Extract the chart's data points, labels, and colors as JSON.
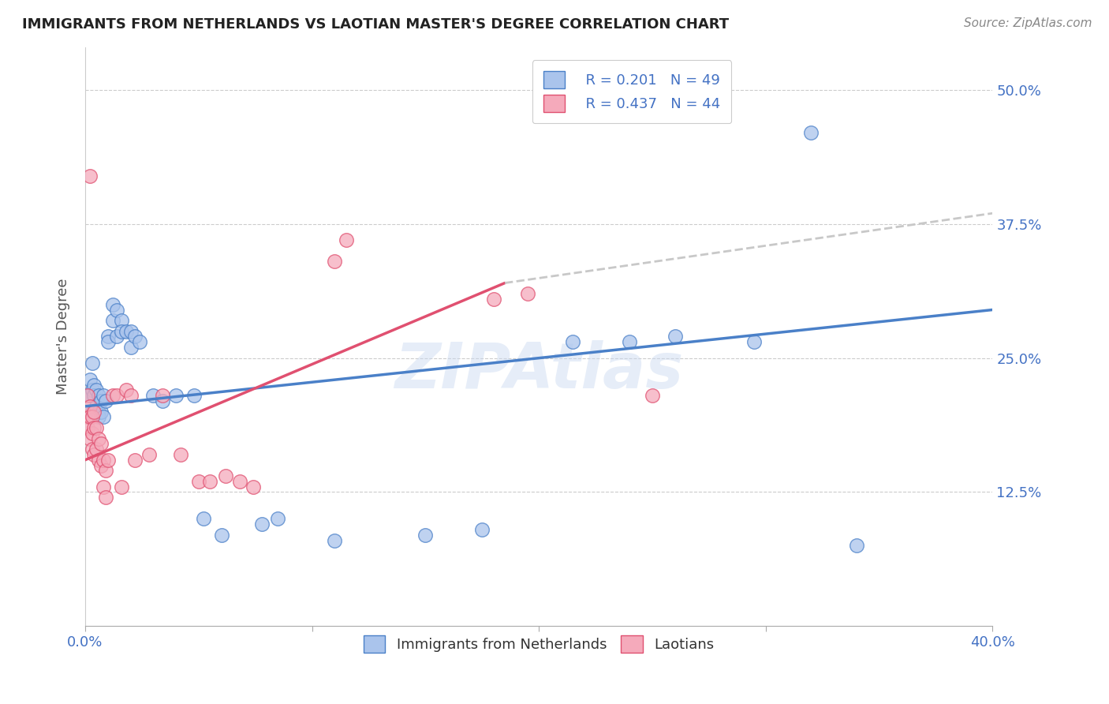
{
  "title": "IMMIGRANTS FROM NETHERLANDS VS LAOTIAN MASTER'S DEGREE CORRELATION CHART",
  "source": "Source: ZipAtlas.com",
  "ylabel": "Master's Degree",
  "yticks": [
    "12.5%",
    "25.0%",
    "37.5%",
    "50.0%"
  ],
  "ytick_vals": [
    0.125,
    0.25,
    0.375,
    0.5
  ],
  "xlim": [
    0.0,
    0.4
  ],
  "ylim": [
    0.0,
    0.54
  ],
  "color_blue": "#aac4ec",
  "color_pink": "#f5aabb",
  "line_color_blue": "#4a80c8",
  "line_color_pink": "#e05070",
  "line_color_dashed": "#c8c8c8",
  "scatter_blue": [
    [
      0.001,
      0.215
    ],
    [
      0.002,
      0.23
    ],
    [
      0.002,
      0.215
    ],
    [
      0.003,
      0.245
    ],
    [
      0.003,
      0.22
    ],
    [
      0.003,
      0.2
    ],
    [
      0.004,
      0.225
    ],
    [
      0.004,
      0.215
    ],
    [
      0.004,
      0.2
    ],
    [
      0.005,
      0.22
    ],
    [
      0.005,
      0.205
    ],
    [
      0.006,
      0.215
    ],
    [
      0.006,
      0.2
    ],
    [
      0.006,
      0.195
    ],
    [
      0.007,
      0.21
    ],
    [
      0.007,
      0.2
    ],
    [
      0.008,
      0.215
    ],
    [
      0.008,
      0.195
    ],
    [
      0.009,
      0.21
    ],
    [
      0.01,
      0.27
    ],
    [
      0.01,
      0.265
    ],
    [
      0.012,
      0.3
    ],
    [
      0.012,
      0.285
    ],
    [
      0.014,
      0.295
    ],
    [
      0.014,
      0.27
    ],
    [
      0.016,
      0.285
    ],
    [
      0.016,
      0.275
    ],
    [
      0.018,
      0.275
    ],
    [
      0.02,
      0.275
    ],
    [
      0.02,
      0.26
    ],
    [
      0.022,
      0.27
    ],
    [
      0.024,
      0.265
    ],
    [
      0.03,
      0.215
    ],
    [
      0.034,
      0.21
    ],
    [
      0.04,
      0.215
    ],
    [
      0.048,
      0.215
    ],
    [
      0.052,
      0.1
    ],
    [
      0.06,
      0.085
    ],
    [
      0.078,
      0.095
    ],
    [
      0.085,
      0.1
    ],
    [
      0.11,
      0.08
    ],
    [
      0.15,
      0.085
    ],
    [
      0.175,
      0.09
    ],
    [
      0.215,
      0.265
    ],
    [
      0.24,
      0.265
    ],
    [
      0.26,
      0.27
    ],
    [
      0.295,
      0.265
    ],
    [
      0.32,
      0.46
    ],
    [
      0.34,
      0.075
    ]
  ],
  "scatter_pink": [
    [
      0.001,
      0.215
    ],
    [
      0.001,
      0.195
    ],
    [
      0.001,
      0.185
    ],
    [
      0.002,
      0.205
    ],
    [
      0.002,
      0.195
    ],
    [
      0.002,
      0.175
    ],
    [
      0.003,
      0.195
    ],
    [
      0.003,
      0.18
    ],
    [
      0.003,
      0.165
    ],
    [
      0.004,
      0.2
    ],
    [
      0.004,
      0.185
    ],
    [
      0.004,
      0.16
    ],
    [
      0.005,
      0.185
    ],
    [
      0.005,
      0.165
    ],
    [
      0.006,
      0.175
    ],
    [
      0.006,
      0.155
    ],
    [
      0.007,
      0.17
    ],
    [
      0.007,
      0.15
    ],
    [
      0.008,
      0.155
    ],
    [
      0.008,
      0.13
    ],
    [
      0.009,
      0.145
    ],
    [
      0.009,
      0.12
    ],
    [
      0.01,
      0.155
    ],
    [
      0.012,
      0.215
    ],
    [
      0.014,
      0.215
    ],
    [
      0.016,
      0.13
    ],
    [
      0.018,
      0.22
    ],
    [
      0.02,
      0.215
    ],
    [
      0.022,
      0.155
    ],
    [
      0.028,
      0.16
    ],
    [
      0.034,
      0.215
    ],
    [
      0.042,
      0.16
    ],
    [
      0.05,
      0.135
    ],
    [
      0.055,
      0.135
    ],
    [
      0.062,
      0.14
    ],
    [
      0.068,
      0.135
    ],
    [
      0.074,
      0.13
    ],
    [
      0.11,
      0.34
    ],
    [
      0.115,
      0.36
    ],
    [
      0.18,
      0.305
    ],
    [
      0.195,
      0.31
    ],
    [
      0.25,
      0.215
    ],
    [
      0.002,
      0.42
    ]
  ],
  "trend_blue_x0": 0.0,
  "trend_blue_x1": 0.4,
  "trend_blue_y0": 0.205,
  "trend_blue_y1": 0.295,
  "trend_pink_x0": 0.0,
  "trend_pink_x1": 0.185,
  "trend_pink_y0": 0.155,
  "trend_pink_y1": 0.32,
  "trend_dash_x0": 0.185,
  "trend_dash_x1": 0.4,
  "trend_dash_y0": 0.32,
  "trend_dash_y1": 0.385
}
